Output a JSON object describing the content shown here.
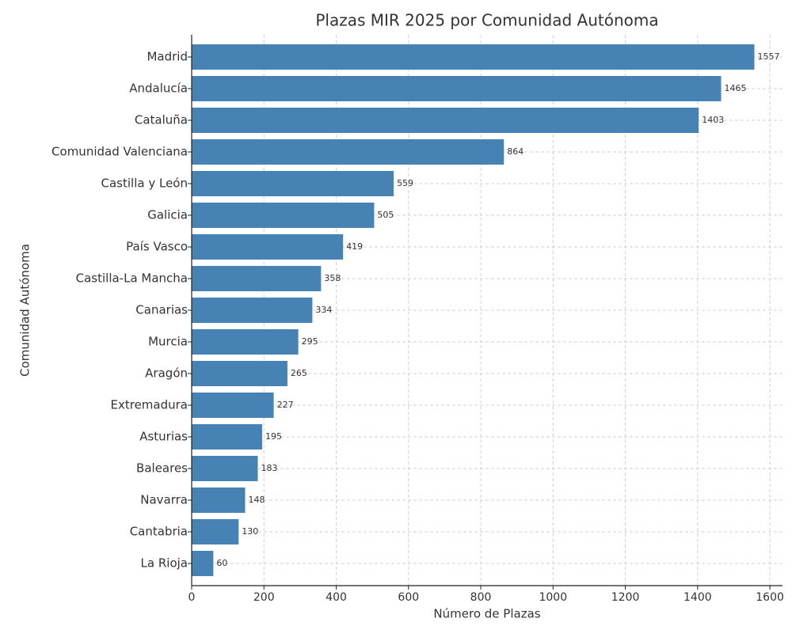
{
  "chart_data": {
    "type": "barh",
    "title": "Plazas MIR 2025 por Comunidad Autónoma",
    "xlabel": "Número de Plazas",
    "ylabel": "Comunidad Autónoma",
    "categories": [
      "Madrid",
      "Andalucía",
      "Cataluña",
      "Comunidad Valenciana",
      "Castilla y León",
      "Galicia",
      "País Vasco",
      "Castilla-La Mancha",
      "Canarias",
      "Murcia",
      "Aragón",
      "Extremadura",
      "Asturias",
      "Baleares",
      "Navarra",
      "Cantabria",
      "La Rioja"
    ],
    "values": [
      1557,
      1465,
      1403,
      864,
      559,
      505,
      419,
      358,
      334,
      295,
      265,
      227,
      195,
      183,
      148,
      130,
      60
    ],
    "color": "#4682b4",
    "xlim": [
      0,
      1634.85
    ],
    "xticks": [
      0,
      200,
      400,
      600,
      800,
      1000,
      1200,
      1400,
      1600
    ],
    "grid": true
  }
}
